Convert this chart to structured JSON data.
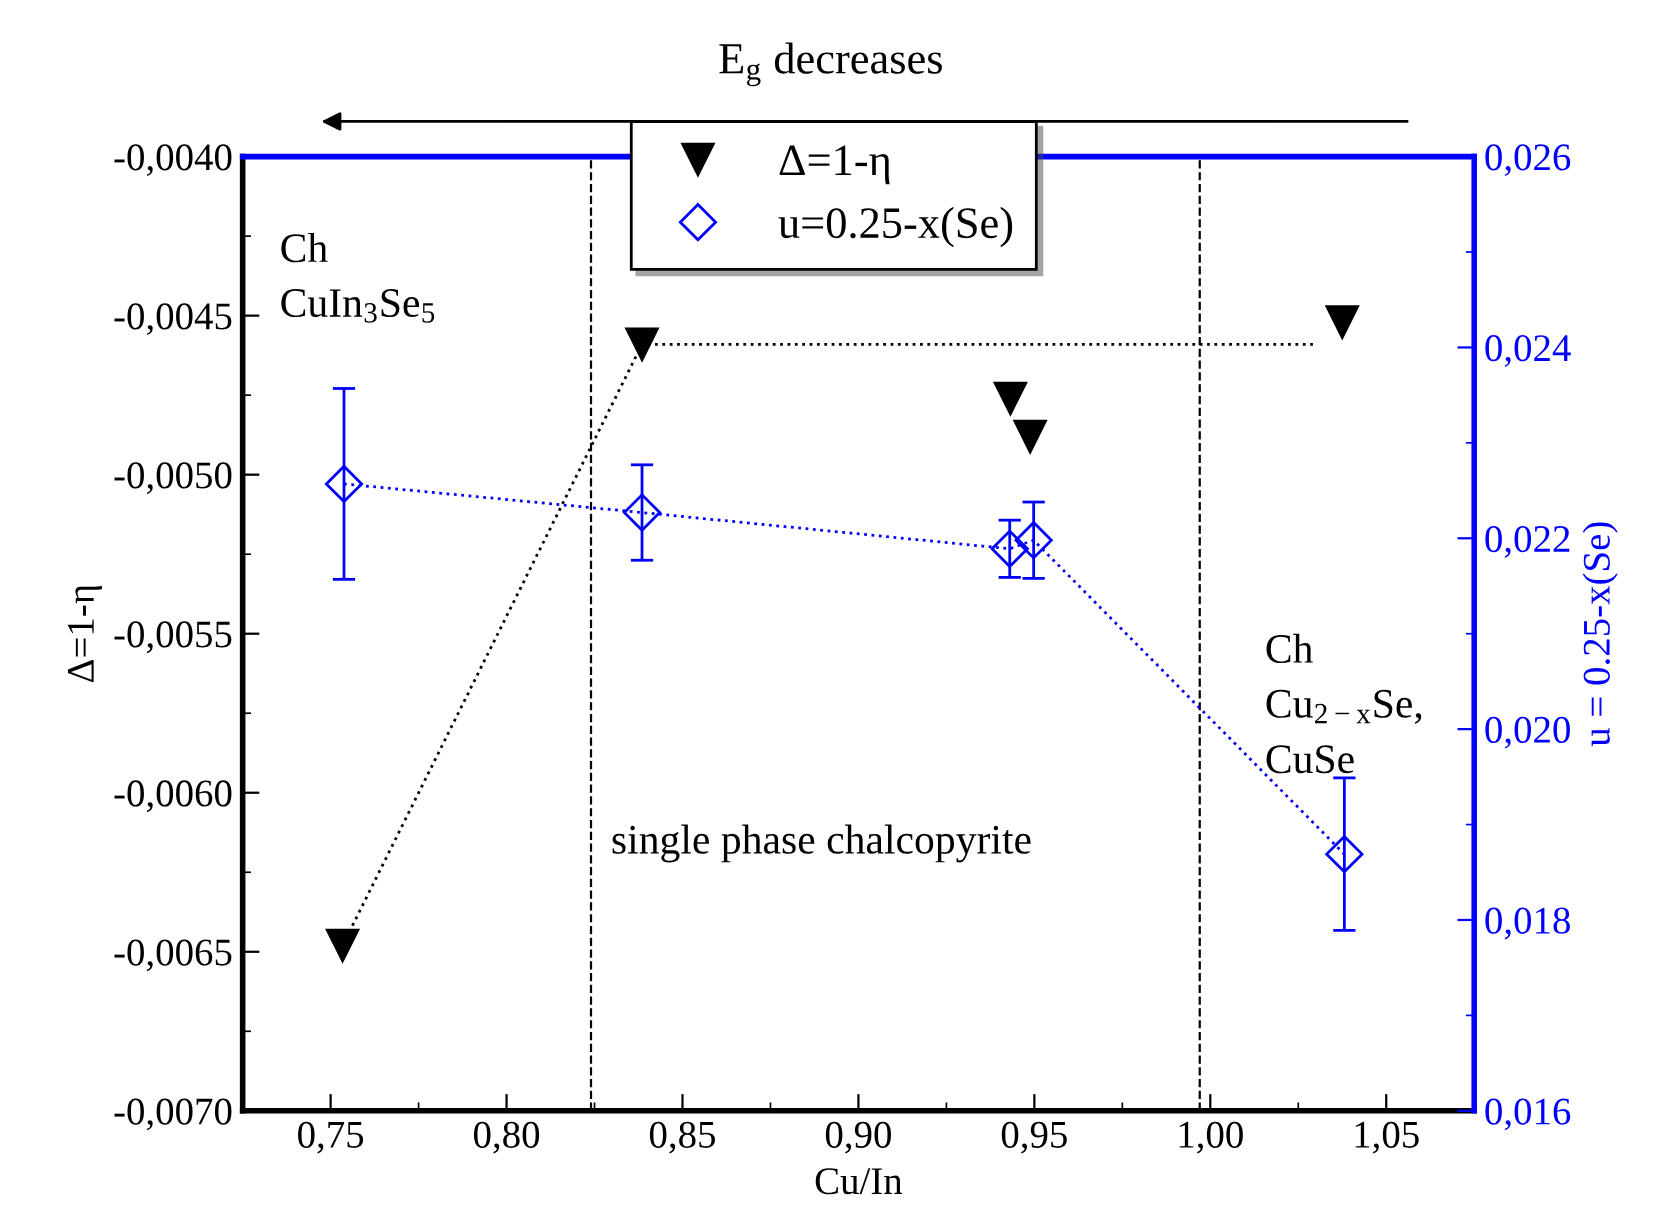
{
  "chart_data": {
    "type": "scatter",
    "xlabel": "Cu/In",
    "ylabel": "Δ=1-η",
    "y2label": "u = 0.25-x(Se)",
    "xlim": [
      0.725,
      1.075
    ],
    "xticks": [
      {
        "value": 0.75,
        "label": "0,75"
      },
      {
        "value": 0.8,
        "label": "0,80"
      },
      {
        "value": 0.85,
        "label": "0,85"
      },
      {
        "value": 0.9,
        "label": "0,90"
      },
      {
        "value": 0.95,
        "label": "0,95"
      },
      {
        "value": 1.0,
        "label": "1,00"
      },
      {
        "value": 1.05,
        "label": "1,05"
      }
    ],
    "ylim": [
      -0.007,
      -0.004
    ],
    "yticks": [
      {
        "value": -0.007,
        "label": "-0,0070"
      },
      {
        "value": -0.0065,
        "label": "-0,0065"
      },
      {
        "value": -0.006,
        "label": "-0,0060"
      },
      {
        "value": -0.0055,
        "label": "-0,0055"
      },
      {
        "value": -0.005,
        "label": "-0,0050"
      },
      {
        "value": -0.0045,
        "label": "-0,0045"
      },
      {
        "value": -0.004,
        "label": "-0,0040"
      }
    ],
    "y2lim": [
      0.016,
      0.026
    ],
    "y2ticks": [
      {
        "value": 0.016,
        "label": "0,016"
      },
      {
        "value": 0.018,
        "label": "0,018"
      },
      {
        "value": 0.02,
        "label": "0,020"
      },
      {
        "value": 0.022,
        "label": "0,022"
      },
      {
        "value": 0.024,
        "label": "0,024"
      },
      {
        "value": 0.026,
        "label": "0,026"
      }
    ],
    "series": [
      {
        "type": "line",
        "color": "#000000",
        "line_style": "dotted",
        "marker": "none",
        "x": [
          0.7534,
          0.8385,
          1.03
        ],
        "values": [
          -0.00648,
          -0.00459,
          -0.00459
        ]
      },
      {
        "name": "Δ=1-η",
        "color": "#000000",
        "marker": "triangle",
        "x": [
          0.7534,
          0.8385,
          0.9432,
          0.9488,
          1.0375
        ],
        "values": [
          -0.00648,
          -0.00459,
          -0.00476,
          -0.00488,
          -0.00452
        ]
      },
      {
        "type": "line",
        "name": "u=0.25-x(Se)",
        "axis": "y2",
        "color": "#0000ff",
        "line_style": "dotted",
        "marker": "diamond",
        "x": [
          0.7538,
          0.8385,
          0.943,
          0.9498,
          1.0381
        ],
        "values": [
          0.02257,
          0.02227,
          0.02189,
          0.02198,
          0.01869
        ],
        "errors": [
          0.001,
          0.0005,
          0.0003,
          0.0004,
          0.0008
        ]
      }
    ],
    "ref_lines": [
      {
        "axis": "x",
        "value": 0.824,
        "color": "#000000",
        "line_style": "dashed"
      },
      {
        "axis": "x",
        "value": 0.997,
        "color": "#000000",
        "line_style": "dashed"
      }
    ],
    "annotations": [
      "E$_{g}$ decreases",
      "Ch\nCuIn$_{3}$Se$_{5}$",
      "Ch\nCu$_{2−x}$Se,\nCuSe",
      "single phase chalcopyrite"
    ],
    "legend": "top",
    "grid": false
  }
}
